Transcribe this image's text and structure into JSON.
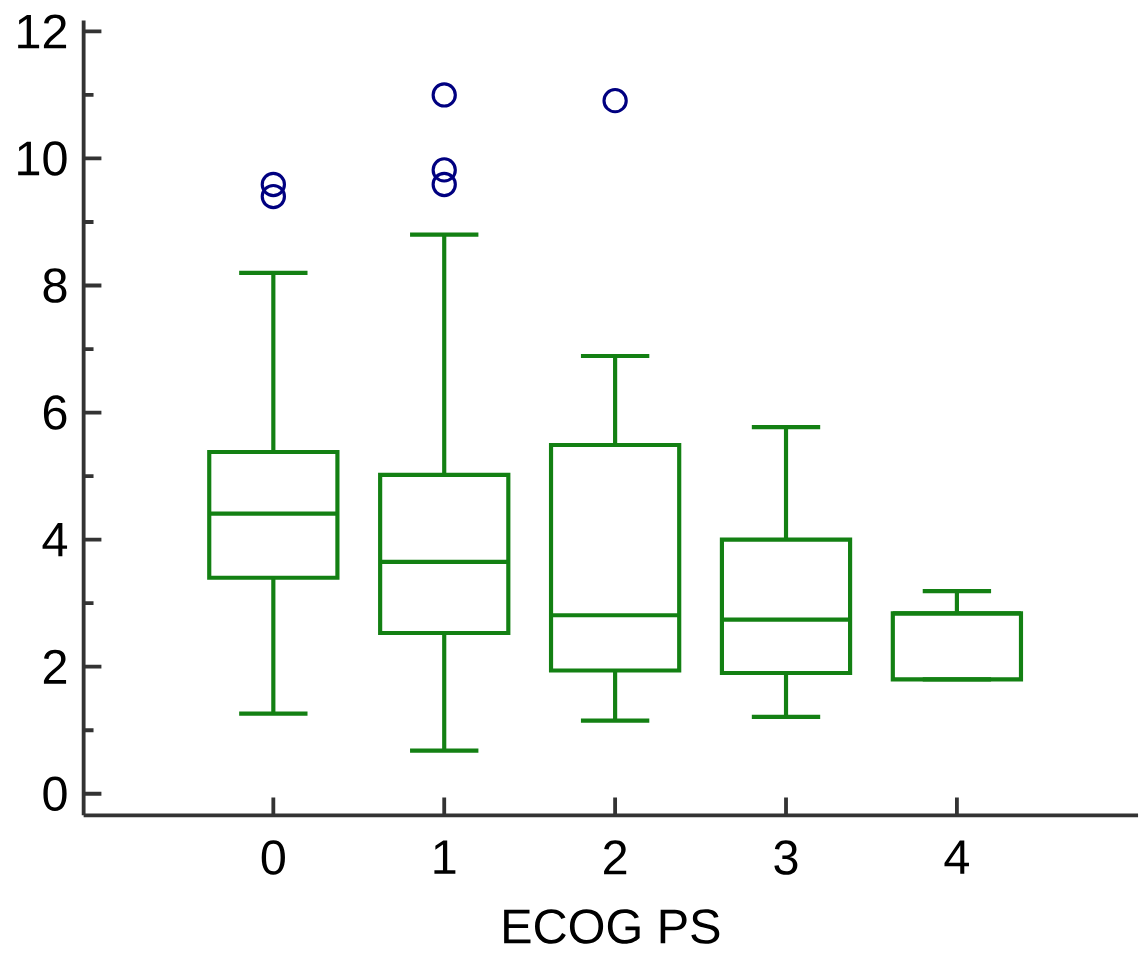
{
  "chart_data": {
    "type": "box",
    "xlabel": "ECOG PS",
    "categories": [
      "0",
      "1",
      "2",
      "3",
      "4"
    ],
    "ylim": [
      -0.34,
      12.17
    ],
    "yticks": [
      0,
      2,
      4,
      6,
      8,
      10,
      12
    ],
    "series": [
      {
        "color": "#138013",
        "boxes": [
          {
            "low": 1.26,
            "q1": 3.4,
            "median": 4.41,
            "q3": 5.38,
            "high": 8.2,
            "outliers": [
              9.59,
              9.4
            ]
          },
          {
            "low": 0.68,
            "q1": 2.53,
            "median": 3.65,
            "q3": 5.02,
            "high": 8.8,
            "outliers": [
              11.0,
              9.82,
              9.59
            ]
          },
          {
            "low": 1.15,
            "q1": 1.94,
            "median": 2.81,
            "q3": 5.49,
            "high": 6.89,
            "outliers": [
              10.91
            ]
          },
          {
            "low": 1.21,
            "q1": 1.9,
            "median": 2.74,
            "q3": 4.0,
            "high": 5.77
          },
          {
            "low": 1.8,
            "q1": 1.8,
            "median": 2.84,
            "q3": 2.84,
            "high": 3.19
          }
        ]
      }
    ]
  }
}
